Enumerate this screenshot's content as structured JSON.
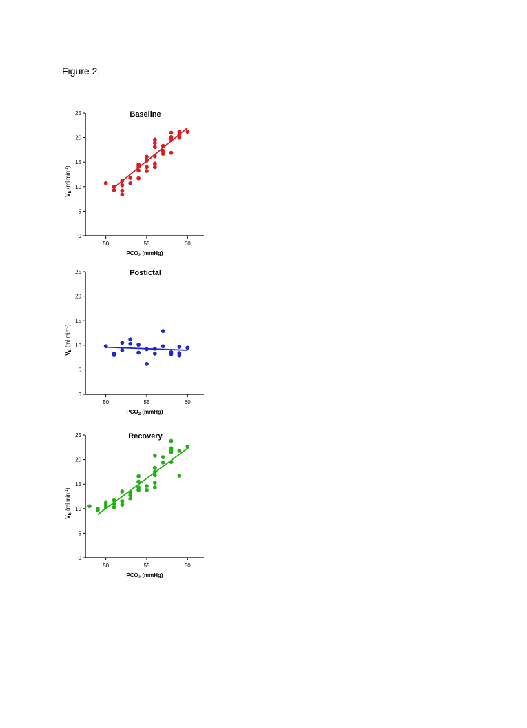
{
  "figure_label": "Figure 2.",
  "chart_data": [
    {
      "type": "scatter",
      "title": "Baseline",
      "xlabel": "PCO2 (mmHg)",
      "ylabel": "VE (ml min-1)",
      "xlim": [
        47.5,
        62
      ],
      "ylim": [
        0,
        25
      ],
      "xticks": [
        50,
        55,
        60
      ],
      "yticks": [
        0,
        5,
        10,
        15,
        20,
        25
      ],
      "color": "#d42020",
      "points": [
        [
          50,
          10.7
        ],
        [
          51,
          9.3
        ],
        [
          51,
          10
        ],
        [
          52,
          8.4
        ],
        [
          52,
          9.2
        ],
        [
          52,
          10.3
        ],
        [
          52,
          11.2
        ],
        [
          53,
          10.7
        ],
        [
          53,
          11.8
        ],
        [
          54,
          11.7
        ],
        [
          54,
          13.3
        ],
        [
          54,
          14.1
        ],
        [
          54,
          14.5
        ],
        [
          55,
          13.2
        ],
        [
          55,
          14
        ],
        [
          55,
          15.3
        ],
        [
          55,
          16.1
        ],
        [
          56,
          14
        ],
        [
          56,
          14.7
        ],
        [
          56,
          16.2
        ],
        [
          56,
          18.1
        ],
        [
          56,
          18.9
        ],
        [
          56,
          19.6
        ],
        [
          57,
          16.7
        ],
        [
          57,
          17.3
        ],
        [
          57,
          18.3
        ],
        [
          58,
          16.9
        ],
        [
          58,
          19.7
        ],
        [
          58,
          20.1
        ],
        [
          58,
          21
        ],
        [
          59,
          20
        ],
        [
          59,
          20.6
        ],
        [
          59,
          21.2
        ],
        [
          60,
          21.2
        ]
      ],
      "fit": {
        "x": [
          51,
          60
        ],
        "y": [
          9.8,
          22
        ]
      }
    },
    {
      "type": "scatter",
      "title": "Postictal",
      "xlabel": "PCO2 (mmHg)",
      "ylabel": "VE (ml min-1)",
      "xlim": [
        47.5,
        62
      ],
      "ylim": [
        0,
        25
      ],
      "xticks": [
        50,
        55,
        60
      ],
      "yticks": [
        0,
        5,
        10,
        15,
        20,
        25
      ],
      "color": "#1c28c8",
      "points": [
        [
          50,
          9.8
        ],
        [
          51,
          8
        ],
        [
          51,
          8.3
        ],
        [
          52,
          9
        ],
        [
          52,
          10.5
        ],
        [
          53,
          10.3
        ],
        [
          53,
          11.2
        ],
        [
          54,
          8.5
        ],
        [
          54,
          10.1
        ],
        [
          55,
          6.2
        ],
        [
          55,
          9.2
        ],
        [
          56,
          8.3
        ],
        [
          56,
          9.3
        ],
        [
          57,
          9.8
        ],
        [
          57,
          12.9
        ],
        [
          58,
          8.2
        ],
        [
          58,
          8.6
        ],
        [
          59,
          7.9
        ],
        [
          59,
          8.4
        ],
        [
          59,
          9.7
        ],
        [
          60,
          9.5
        ]
      ],
      "fit": {
        "x": [
          50,
          60
        ],
        "y": [
          9.6,
          9.0
        ]
      }
    },
    {
      "type": "scatter",
      "title": "Recovery",
      "xlabel": "PCO2 (mmHg)",
      "ylabel": "VE (ml min-1)",
      "xlim": [
        47.5,
        62
      ],
      "ylim": [
        0,
        25
      ],
      "xticks": [
        50,
        55,
        60
      ],
      "yticks": [
        0,
        5,
        10,
        15,
        20,
        25
      ],
      "color": "#22b014",
      "points": [
        [
          48,
          10.5
        ],
        [
          49,
          9.7
        ],
        [
          49,
          10
        ],
        [
          50,
          10.2
        ],
        [
          50,
          10.7
        ],
        [
          50,
          11.2
        ],
        [
          51,
          10.3
        ],
        [
          51,
          11
        ],
        [
          51,
          11.7
        ],
        [
          52,
          10.8
        ],
        [
          52,
          11.5
        ],
        [
          52,
          13.5
        ],
        [
          53,
          12
        ],
        [
          53,
          12.7
        ],
        [
          53,
          13.3
        ],
        [
          54,
          13.8
        ],
        [
          54,
          14.3
        ],
        [
          54,
          15.5
        ],
        [
          54,
          16.6
        ],
        [
          55,
          13.8
        ],
        [
          55,
          14.6
        ],
        [
          56,
          14.3
        ],
        [
          56,
          15.3
        ],
        [
          56,
          16.8
        ],
        [
          56,
          17.5
        ],
        [
          56,
          18.3
        ],
        [
          56,
          20.8
        ],
        [
          57,
          19.4
        ],
        [
          57,
          20.5
        ],
        [
          58,
          19.5
        ],
        [
          58,
          21.5
        ],
        [
          58,
          22
        ],
        [
          58,
          22.3
        ],
        [
          58,
          23.8
        ],
        [
          59,
          16.7
        ],
        [
          59,
          21.8
        ],
        [
          60,
          22.6
        ]
      ],
      "fit": {
        "x": [
          49,
          60
        ],
        "y": [
          8.8,
          22.3
        ]
      }
    }
  ]
}
